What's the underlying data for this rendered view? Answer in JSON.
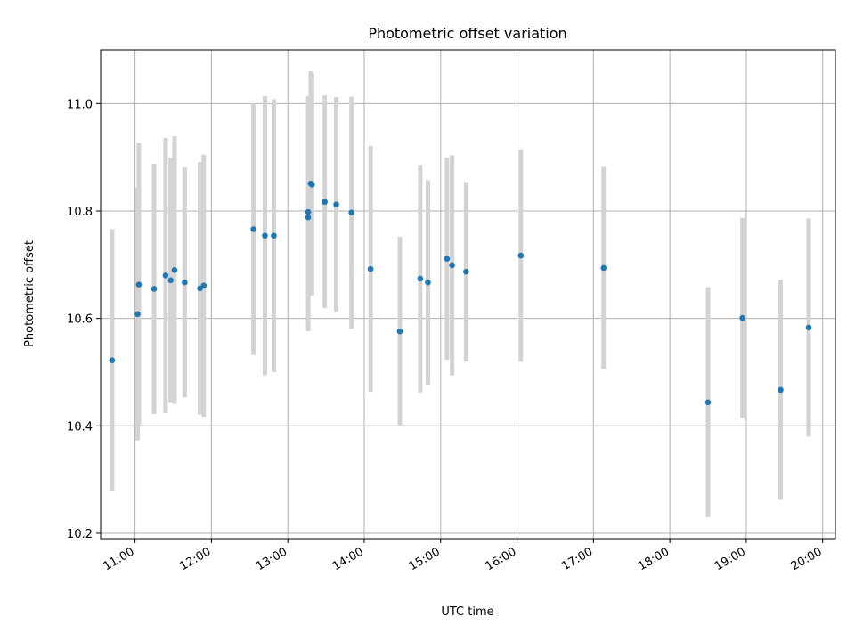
{
  "chart_data": {
    "type": "scatter",
    "title": "Photometric offset variation",
    "xlabel": "UTC time",
    "ylabel": "Photometric offset",
    "x_ticks": [
      "11:00",
      "12:00",
      "13:00",
      "14:00",
      "15:00",
      "16:00",
      "17:00",
      "18:00",
      "19:00",
      "20:00"
    ],
    "y_ticks": [
      "10.2",
      "10.4",
      "10.6",
      "10.8",
      "11.0"
    ],
    "xlim": [
      "10:33",
      "20:10"
    ],
    "ylim": [
      10.19,
      11.1
    ],
    "grid": true,
    "colors": {
      "point": "#1f77b4",
      "error_bar": "#d3d3d3",
      "grid": "#b0b0b0",
      "axes": "#000000"
    },
    "series": [
      {
        "x": [
          "10:42",
          "11:02",
          "11:03",
          "11:15",
          "11:24",
          "11:28",
          "11:31",
          "11:39",
          "11:51",
          "11:54",
          "12:33",
          "12:42",
          "12:49",
          "13:16",
          "13:16",
          "13:18",
          "13:19",
          "13:29",
          "13:38",
          "13:50",
          "14:05",
          "14:28",
          "14:44",
          "14:50",
          "15:05",
          "15:09",
          "15:20",
          "16:03",
          "17:08",
          "18:30",
          "18:57",
          "19:27",
          "19:49"
        ],
        "y": [
          10.522,
          10.608,
          10.663,
          10.655,
          10.68,
          10.671,
          10.69,
          10.667,
          10.656,
          10.661,
          10.766,
          10.754,
          10.754,
          10.798,
          10.788,
          10.851,
          10.849,
          10.817,
          10.812,
          10.797,
          10.692,
          10.576,
          10.674,
          10.667,
          10.711,
          10.699,
          10.687,
          10.717,
          10.694,
          10.444,
          10.601,
          10.467,
          10.583
        ],
        "err": [
          0.244,
          0.235,
          0.263,
          0.233,
          0.256,
          0.228,
          0.249,
          0.214,
          0.235,
          0.244,
          0.234,
          0.26,
          0.254,
          0.216,
          0.212,
          0.209,
          0.207,
          0.198,
          0.2,
          0.216,
          0.229,
          0.176,
          0.212,
          0.19,
          0.188,
          0.205,
          0.167,
          0.198,
          0.188,
          0.214,
          0.186,
          0.205,
          0.203
        ]
      }
    ]
  }
}
